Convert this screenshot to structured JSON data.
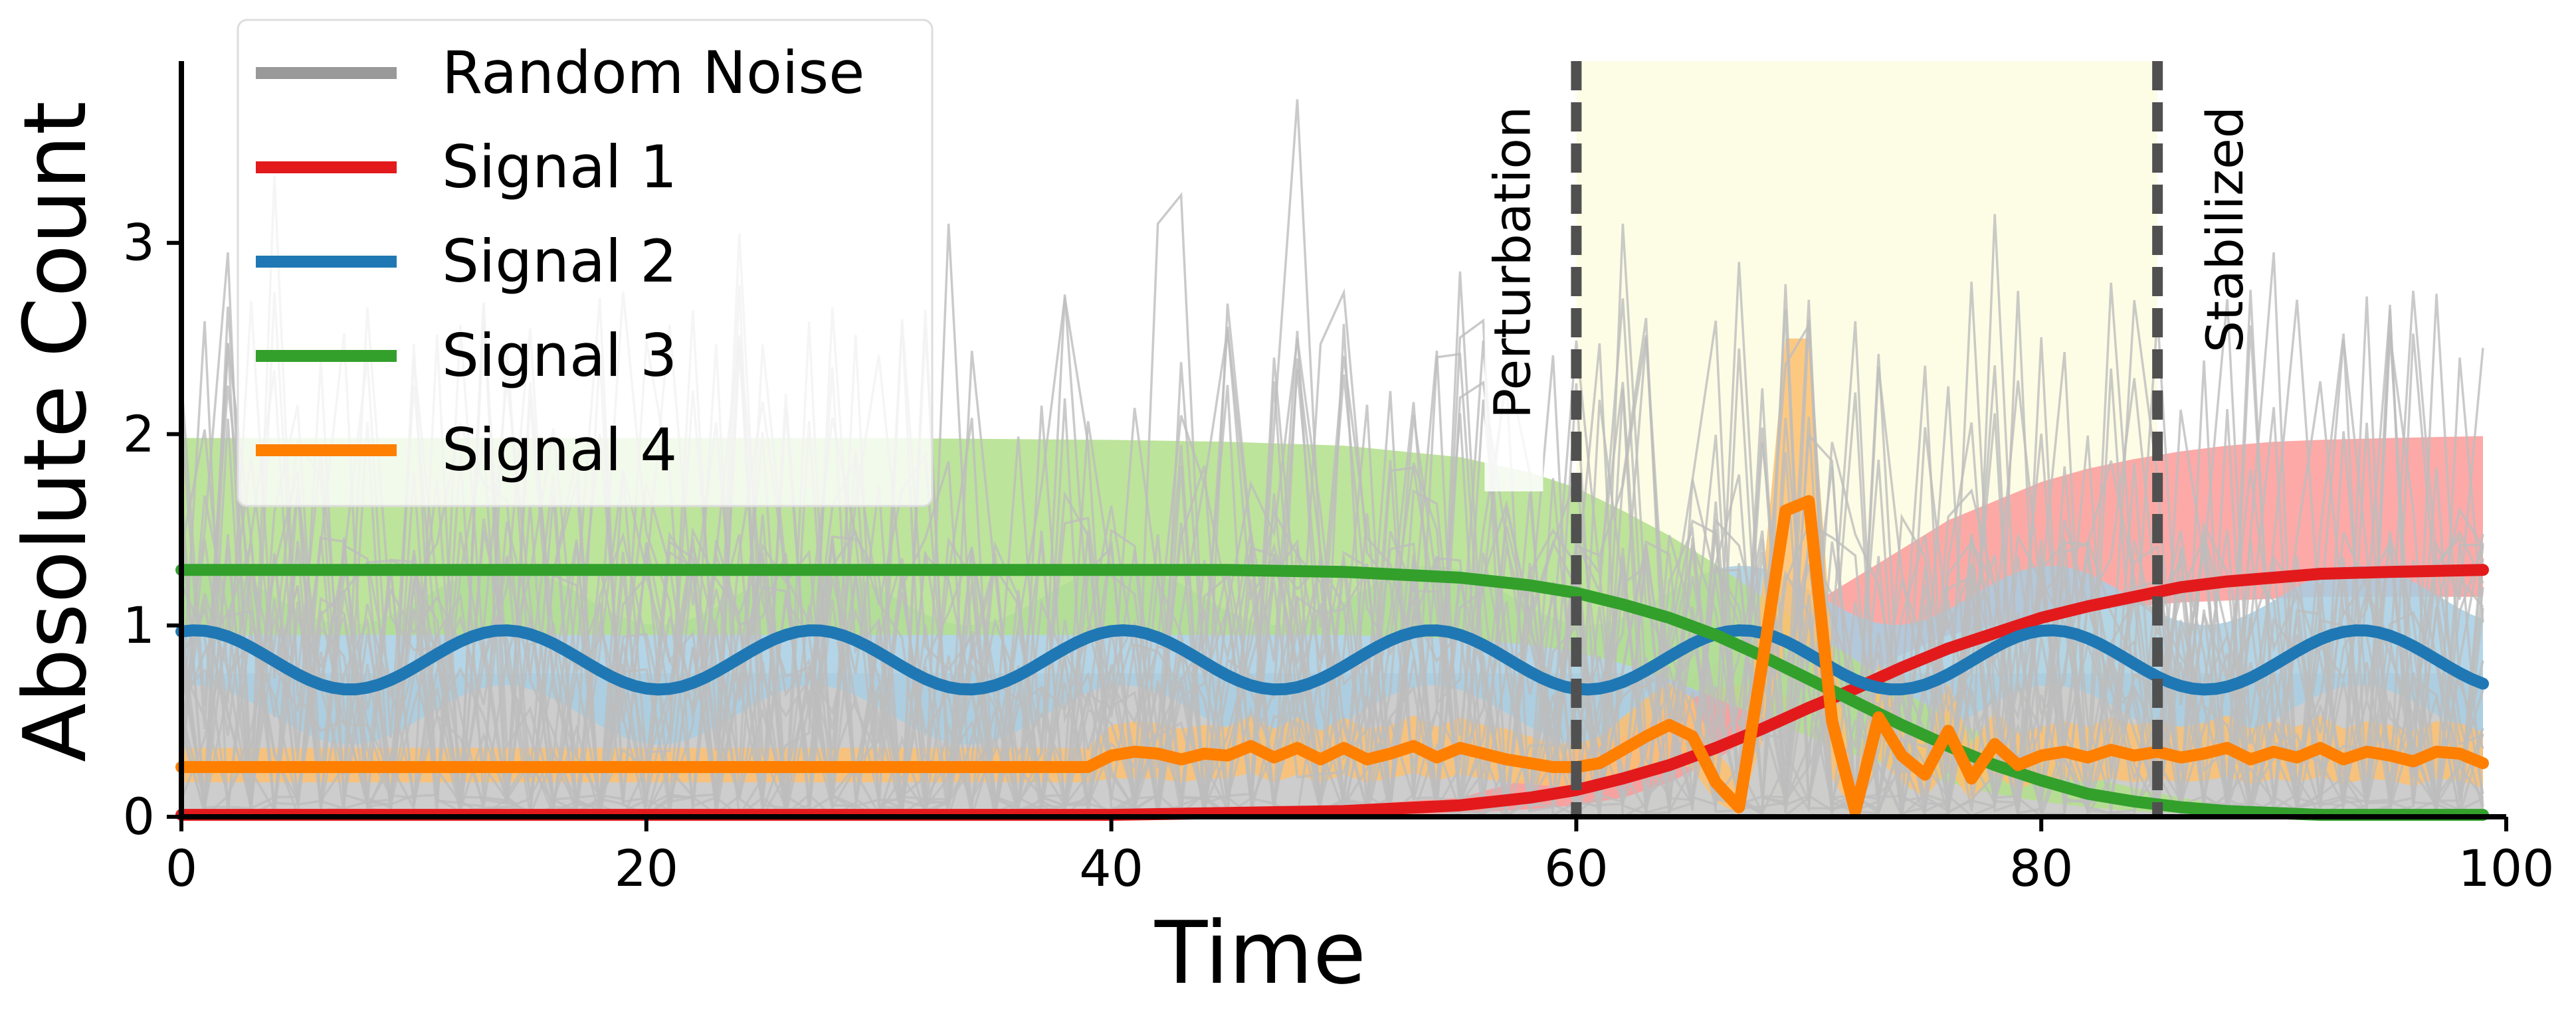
{
  "chart_data": {
    "type": "line",
    "title": "",
    "xlabel": "Time",
    "ylabel": "Absolute Count",
    "xlim": [
      0,
      100
    ],
    "ylim": [
      0,
      3.95
    ],
    "x_ticks": [
      0,
      20,
      40,
      60,
      80,
      100
    ],
    "y_ticks": [
      0,
      1,
      2,
      3
    ],
    "x_tick_labels": [
      "0",
      "20",
      "40",
      "60",
      "80",
      "100"
    ],
    "y_tick_labels": [
      "0",
      "1",
      "2",
      "3"
    ],
    "grid": false,
    "legend_position": "top-left",
    "shaded_region": {
      "x_start": 60,
      "x_end": 85,
      "color": "#fdfde6"
    },
    "vertical_lines": [
      {
        "x": 60,
        "label": "Perturbation",
        "label_side": "left"
      },
      {
        "x": 85,
        "label": "Stabilized",
        "label_side": "right"
      }
    ],
    "noise": {
      "name": "Random Noise",
      "color": "#999999",
      "line_color": "#bdbdbd",
      "band_color": "#c8c8c8",
      "band_low": 0.0,
      "band_high": 0.75,
      "n_traces": 24,
      "mean": 0.45,
      "spikes": [
        {
          "x": 48,
          "y": 3.75
        },
        {
          "x": 43,
          "y": 3.25
        },
        {
          "x": 42,
          "y": 3.1
        },
        {
          "x": 62,
          "y": 3.1
        },
        {
          "x": 78,
          "y": 3.15
        },
        {
          "x": 70,
          "y": 2.6
        },
        {
          "x": 84,
          "y": 2.7
        },
        {
          "x": 76,
          "y": 2.25
        },
        {
          "x": 67,
          "y": 2.9
        },
        {
          "x": 90,
          "y": 2.95
        },
        {
          "x": 4,
          "y": 3.35
        },
        {
          "x": 2,
          "y": 2.95
        },
        {
          "x": 24,
          "y": 3.05
        },
        {
          "x": 33,
          "y": 3.1
        },
        {
          "x": 55,
          "y": 2.85
        },
        {
          "x": 95,
          "y": 2.65
        },
        {
          "x": 98,
          "y": 2.4
        }
      ]
    },
    "series": [
      {
        "name": "Signal 1",
        "color": "#e31a1c",
        "band_color": "#fb9a99",
        "x": [
          0,
          10,
          20,
          30,
          40,
          45,
          50,
          55,
          58,
          60,
          62,
          64,
          66,
          68,
          70,
          72,
          74,
          76,
          78,
          80,
          82,
          84,
          86,
          88,
          90,
          92,
          95,
          99
        ],
        "y": [
          0.01,
          0.01,
          0.01,
          0.01,
          0.01,
          0.02,
          0.03,
          0.06,
          0.1,
          0.14,
          0.2,
          0.27,
          0.36,
          0.46,
          0.57,
          0.67,
          0.78,
          0.88,
          0.96,
          1.04,
          1.1,
          1.15,
          1.2,
          1.23,
          1.25,
          1.27,
          1.28,
          1.29
        ],
        "band_upper": [
          0.02,
          0.02,
          0.02,
          0.02,
          0.02,
          0.04,
          0.06,
          0.1,
          0.2,
          0.35,
          0.5,
          0.65,
          0.8,
          0.95,
          1.1,
          1.25,
          1.4,
          1.55,
          1.65,
          1.75,
          1.82,
          1.87,
          1.91,
          1.94,
          1.96,
          1.97,
          1.98,
          1.99
        ],
        "band_lower": [
          0,
          0,
          0,
          0,
          0,
          0,
          0,
          0.02,
          0.04,
          0.06,
          0.1,
          0.18,
          0.3,
          0.45,
          0.6,
          0.7,
          0.85,
          0.95,
          1.0,
          1.05,
          1.08,
          1.1,
          1.12,
          1.13,
          1.14,
          1.15,
          1.15,
          1.15
        ]
      },
      {
        "name": "Signal 2",
        "color": "#1f78b4",
        "band_color": "#a6cee3",
        "function": "sine",
        "center": 0.82,
        "amplitude": 0.155,
        "period": 13.3,
        "phase_x0_peak": 0.6,
        "band_halfwidth": 0.45,
        "x_max": 99
      },
      {
        "name": "Signal 3",
        "color": "#33a02c",
        "band_color": "#b2df8a",
        "x": [
          0,
          10,
          20,
          30,
          40,
          45,
          50,
          55,
          58,
          60,
          62,
          64,
          66,
          68,
          70,
          72,
          74,
          76,
          78,
          80,
          82,
          84,
          86,
          88,
          90,
          92,
          95,
          99
        ],
        "y": [
          1.29,
          1.29,
          1.29,
          1.29,
          1.29,
          1.29,
          1.28,
          1.25,
          1.21,
          1.17,
          1.11,
          1.04,
          0.95,
          0.84,
          0.72,
          0.6,
          0.48,
          0.37,
          0.27,
          0.19,
          0.12,
          0.08,
          0.05,
          0.03,
          0.02,
          0.01,
          0.01,
          0.01
        ],
        "band_upper": [
          1.98,
          1.98,
          1.98,
          1.98,
          1.97,
          1.96,
          1.94,
          1.88,
          1.8,
          1.72,
          1.6,
          1.47,
          1.32,
          1.15,
          0.98,
          0.82,
          0.66,
          0.52,
          0.4,
          0.3,
          0.21,
          0.15,
          0.1,
          0.06,
          0.04,
          0.03,
          0.02,
          0.02
        ],
        "band_lower": [
          0.95,
          0.95,
          0.95,
          0.95,
          0.95,
          0.95,
          0.95,
          0.93,
          0.9,
          0.86,
          0.8,
          0.72,
          0.62,
          0.52,
          0.42,
          0.32,
          0.25,
          0.18,
          0.12,
          0.08,
          0.05,
          0.03,
          0.02,
          0.01,
          0,
          0,
          0,
          0
        ]
      },
      {
        "name": "Signal 4",
        "color": "#ff7f00",
        "band_color": "#fdbf6f",
        "x": [
          0,
          10,
          20,
          30,
          38,
          39,
          40,
          41,
          42,
          43,
          44,
          45,
          46,
          47,
          48,
          49,
          50,
          51,
          52,
          53,
          54,
          55,
          56,
          57,
          58,
          59,
          60,
          61,
          62,
          63,
          64,
          65,
          66,
          67,
          68,
          69,
          70,
          71,
          72,
          73,
          74,
          75,
          76,
          77,
          78,
          79,
          80,
          81,
          82,
          83,
          84,
          85,
          86,
          87,
          88,
          89,
          90,
          91,
          92,
          93,
          94,
          95,
          96,
          97,
          98,
          99
        ],
        "y": [
          0.26,
          0.26,
          0.26,
          0.26,
          0.26,
          0.26,
          0.32,
          0.34,
          0.33,
          0.3,
          0.33,
          0.32,
          0.37,
          0.31,
          0.36,
          0.3,
          0.36,
          0.3,
          0.33,
          0.37,
          0.31,
          0.36,
          0.33,
          0.3,
          0.28,
          0.26,
          0.26,
          0.28,
          0.35,
          0.42,
          0.48,
          0.42,
          0.18,
          0.05,
          0.8,
          1.6,
          1.65,
          0.5,
          0.03,
          0.52,
          0.32,
          0.22,
          0.45,
          0.2,
          0.38,
          0.27,
          0.32,
          0.34,
          0.31,
          0.35,
          0.32,
          0.34,
          0.31,
          0.33,
          0.36,
          0.3,
          0.34,
          0.31,
          0.36,
          0.3,
          0.34,
          0.32,
          0.29,
          0.34,
          0.33,
          0.28
        ],
        "band_upper": [
          0.36,
          0.36,
          0.36,
          0.36,
          0.36,
          0.36,
          0.48,
          0.5,
          0.49,
          0.46,
          0.48,
          0.47,
          0.53,
          0.46,
          0.52,
          0.45,
          0.52,
          0.46,
          0.48,
          0.53,
          0.47,
          0.52,
          0.48,
          0.46,
          0.42,
          0.38,
          0.38,
          0.42,
          0.52,
          0.62,
          0.7,
          0.62,
          0.35,
          0.2,
          1.2,
          2.5,
          2.5,
          0.9,
          0.2,
          0.8,
          0.5,
          0.4,
          0.7,
          0.38,
          0.55,
          0.44,
          0.47,
          0.5,
          0.47,
          0.52,
          0.48,
          0.5,
          0.47,
          0.49,
          0.53,
          0.46,
          0.5,
          0.47,
          0.53,
          0.46,
          0.5,
          0.48,
          0.45,
          0.5,
          0.49,
          0.44
        ],
        "band_lower": [
          0.18,
          0.18,
          0.18,
          0.18,
          0.18,
          0.18,
          0.2,
          0.2,
          0.2,
          0.18,
          0.2,
          0.2,
          0.23,
          0.18,
          0.22,
          0.18,
          0.22,
          0.18,
          0.2,
          0.23,
          0.19,
          0.22,
          0.2,
          0.18,
          0.17,
          0.16,
          0.16,
          0.17,
          0.2,
          0.25,
          0.3,
          0.25,
          0.08,
          0.01,
          0.4,
          0.9,
          0.9,
          0.2,
          0.01,
          0.3,
          0.18,
          0.1,
          0.25,
          0.08,
          0.22,
          0.14,
          0.2,
          0.2,
          0.18,
          0.2,
          0.18,
          0.2,
          0.18,
          0.19,
          0.21,
          0.17,
          0.2,
          0.18,
          0.21,
          0.17,
          0.2,
          0.19,
          0.16,
          0.2,
          0.19,
          0.15
        ]
      }
    ]
  }
}
